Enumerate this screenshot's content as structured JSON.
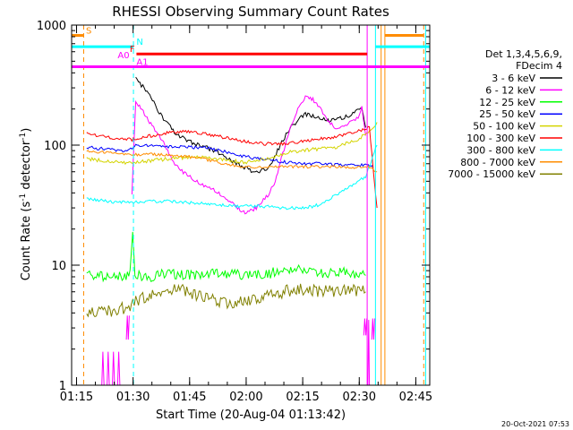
{
  "chart_data": {
    "type": "line",
    "title": "RHESSI Observing Summary Count Rates",
    "xlabel": "Start Time (20-Aug-04 01:13:42)",
    "ylabel": "Count Rate (s⁻¹ detector⁻¹)",
    "ylabel_main": "Count Rate (s",
    "ylabel_sup1": "-1",
    "ylabel_mid": " detector",
    "ylabel_sup2": "-1",
    "ylabel_end": ")",
    "y_scale": "log",
    "ylim": [
      1,
      1000
    ],
    "x_unit": "minutes after 01:13:42",
    "xlim": [
      0,
      95
    ],
    "x_ticks": [
      {
        "x": 1.3,
        "label": "01:15"
      },
      {
        "x": 16.3,
        "label": "01:30"
      },
      {
        "x": 31.3,
        "label": "01:45"
      },
      {
        "x": 46.3,
        "label": "02:00"
      },
      {
        "x": 61.3,
        "label": "02:15"
      },
      {
        "x": 76.3,
        "label": "02:30"
      },
      {
        "x": 91.3,
        "label": "02:45"
      }
    ],
    "y_ticks": [
      {
        "y": 1,
        "label": "1"
      },
      {
        "y": 10,
        "label": "10"
      },
      {
        "y": 100,
        "label": "100"
      },
      {
        "y": 1000,
        "label": "1000"
      }
    ],
    "legend_header": [
      "Det 1,3,4,5,6,9,",
      "FDecim 4"
    ],
    "legend_position": "right",
    "series": [
      {
        "name": "3 - 6 keV",
        "color": "#000000",
        "points": [
          [
            17,
            360
          ],
          [
            20,
            280
          ],
          [
            24,
            170
          ],
          [
            28,
            120
          ],
          [
            32,
            105
          ],
          [
            38,
            90
          ],
          [
            44,
            70
          ],
          [
            48,
            60
          ],
          [
            52,
            62
          ],
          [
            55,
            95
          ],
          [
            58,
            140
          ],
          [
            60,
            160
          ],
          [
            62,
            180
          ],
          [
            64,
            175
          ],
          [
            68,
            160
          ],
          [
            72,
            170
          ],
          [
            75,
            185
          ],
          [
            77,
            200
          ],
          [
            78,
            140
          ]
        ]
      },
      {
        "name": "6 - 12 keV",
        "color": "#ff00ff",
        "points": [
          [
            16,
            40
          ],
          [
            17,
            230
          ],
          [
            19,
            190
          ],
          [
            21,
            150
          ],
          [
            24,
            110
          ],
          [
            27,
            72
          ],
          [
            30,
            58
          ],
          [
            34,
            48
          ],
          [
            38,
            42
          ],
          [
            42,
            34
          ],
          [
            44,
            30
          ],
          [
            46,
            27
          ],
          [
            49,
            30
          ],
          [
            52,
            38
          ],
          [
            54,
            50
          ],
          [
            56,
            85
          ],
          [
            58,
            140
          ],
          [
            60,
            200
          ],
          [
            62,
            250
          ],
          [
            64,
            240
          ],
          [
            66,
            200
          ],
          [
            68,
            160
          ],
          [
            70,
            140
          ],
          [
            73,
            150
          ],
          [
            76,
            170
          ],
          [
            77,
            205
          ],
          [
            78,
            120
          ]
        ]
      },
      {
        "name": "12 - 25 keV",
        "color": "#00ff00",
        "points": [
          [
            4,
            8.5
          ],
          [
            8,
            8.2
          ],
          [
            12,
            8
          ],
          [
            15.5,
            8.3
          ],
          [
            16.2,
            20
          ],
          [
            16.8,
            8.5
          ],
          [
            20,
            7.8
          ],
          [
            26,
            8.6
          ],
          [
            32,
            8.2
          ],
          [
            40,
            8.5
          ],
          [
            48,
            8.3
          ],
          [
            56,
            8.8
          ],
          [
            62,
            9.2
          ],
          [
            68,
            8.5
          ],
          [
            74,
            8.7
          ],
          [
            78,
            8.2
          ]
        ]
      },
      {
        "name": "25 - 50 keV",
        "color": "#0000ff",
        "points": [
          [
            4,
            96
          ],
          [
            10,
            92
          ],
          [
            15,
            90
          ],
          [
            17,
            100
          ],
          [
            22,
            98
          ],
          [
            30,
            96
          ],
          [
            36,
            95
          ],
          [
            42,
            86
          ],
          [
            48,
            78
          ],
          [
            54,
            74
          ],
          [
            60,
            70
          ],
          [
            66,
            70
          ],
          [
            72,
            68
          ],
          [
            78,
            68
          ],
          [
            80,
            65
          ]
        ]
      },
      {
        "name": "50 - 100 keV",
        "color": "#d4d400",
        "points": [
          [
            4,
            77
          ],
          [
            10,
            73
          ],
          [
            16,
            71
          ],
          [
            22,
            75
          ],
          [
            28,
            78
          ],
          [
            34,
            80
          ],
          [
            40,
            76
          ],
          [
            46,
            72
          ],
          [
            52,
            77
          ],
          [
            58,
            88
          ],
          [
            64,
            92
          ],
          [
            70,
            96
          ],
          [
            76,
            112
          ],
          [
            79,
            128
          ],
          [
            81,
            155
          ]
        ]
      },
      {
        "name": "100 - 300 keV",
        "color": "#ff0000",
        "points": [
          [
            4,
            125
          ],
          [
            8,
            118
          ],
          [
            12,
            113
          ],
          [
            16,
            111
          ],
          [
            20,
            118
          ],
          [
            26,
            128
          ],
          [
            32,
            130
          ],
          [
            38,
            120
          ],
          [
            44,
            110
          ],
          [
            50,
            103
          ],
          [
            56,
            102
          ],
          [
            62,
            108
          ],
          [
            68,
            115
          ],
          [
            74,
            125
          ],
          [
            79,
            140
          ],
          [
            81,
            30
          ]
        ]
      },
      {
        "name": "300 - 800 keV",
        "color": "#00ffff",
        "points": [
          [
            4,
            36
          ],
          [
            10,
            34
          ],
          [
            16,
            33
          ],
          [
            20,
            34
          ],
          [
            26,
            34
          ],
          [
            32,
            33
          ],
          [
            38,
            32
          ],
          [
            44,
            31
          ],
          [
            50,
            31
          ],
          [
            56,
            30
          ],
          [
            62,
            30
          ],
          [
            66,
            32
          ],
          [
            70,
            38
          ],
          [
            74,
            45
          ],
          [
            78,
            55
          ],
          [
            81,
            100
          ]
        ]
      },
      {
        "name": "800 - 7000 keV",
        "color": "#ff8c00",
        "points": [
          [
            4,
            90
          ],
          [
            10,
            86
          ],
          [
            16,
            83
          ],
          [
            22,
            84
          ],
          [
            28,
            82
          ],
          [
            34,
            78
          ],
          [
            40,
            70
          ],
          [
            46,
            66
          ],
          [
            52,
            66
          ],
          [
            58,
            66
          ],
          [
            64,
            66
          ],
          [
            70,
            66
          ],
          [
            76,
            65
          ],
          [
            79,
            66
          ],
          [
            81,
            60
          ]
        ]
      },
      {
        "name": "7000 - 15000 keV",
        "color": "#808000",
        "points": [
          [
            4,
            4.2
          ],
          [
            8,
            4
          ],
          [
            12,
            4.3
          ],
          [
            15.5,
            4.4
          ],
          [
            17,
            5
          ],
          [
            20,
            5.5
          ],
          [
            24,
            6
          ],
          [
            28,
            6.3
          ],
          [
            32,
            5.8
          ],
          [
            36,
            5.2
          ],
          [
            42,
            4.8
          ],
          [
            48,
            5
          ],
          [
            54,
            5.8
          ],
          [
            60,
            6.4
          ],
          [
            66,
            6
          ],
          [
            72,
            6.2
          ],
          [
            78,
            6
          ]
        ]
      }
    ],
    "low_magenta": {
      "color": "#ff00ff",
      "segments": [
        [
          [
            8,
            1
          ],
          [
            8.6,
            1.9
          ]
        ],
        [
          [
            9.4,
            1
          ],
          [
            10,
            1.9
          ]
        ],
        [
          [
            10.8,
            1
          ],
          [
            11.4,
            1.9
          ]
        ],
        [
          [
            12.2,
            1
          ],
          [
            12.8,
            1.9
          ]
        ],
        [
          [
            14.5,
            2.4
          ],
          [
            15.3,
            3.8
          ]
        ],
        [
          [
            77.5,
            2.6
          ],
          [
            78.3,
            3.6
          ]
        ],
        [
          [
            78.6,
            1
          ],
          [
            79,
            3.5
          ]
        ],
        [
          [
            79.6,
            2.4
          ],
          [
            80.4,
            3.6
          ]
        ]
      ]
    },
    "vertical_lines": [
      {
        "x": 3.2,
        "color": "#ff8c00",
        "style": "dashed"
      },
      {
        "x": 16.4,
        "color": "#00ffff",
        "style": "dashed"
      },
      {
        "x": 78.4,
        "color": "#ff00ff",
        "style": "solid"
      },
      {
        "x": 80.6,
        "color": "#00ffff",
        "style": "solid"
      },
      {
        "x": 82.1,
        "color": "#ff8c00",
        "style": "solid"
      },
      {
        "x": 83.1,
        "color": "#ff8c00",
        "style": "solid"
      },
      {
        "x": 93.4,
        "color": "#ff8c00",
        "style": "dashed"
      },
      {
        "x": 93.9,
        "color": "#00ffff",
        "style": "solid"
      }
    ],
    "state_bars": [
      {
        "label": "S",
        "color": "#ff8c00",
        "y": 820,
        "segments": [
          [
            0,
            3.2
          ],
          [
            83.1,
            93.4
          ]
        ],
        "label_x": 3.8
      },
      {
        "label": "N",
        "color": "#00ffff",
        "y": 660,
        "segments": [
          [
            0,
            16.4
          ],
          [
            80.6,
            95
          ]
        ],
        "label_x": 17.2
      },
      {
        "label": "F",
        "color": "#ff0000",
        "y": 575,
        "segments": [
          [
            17.2,
            78.4
          ]
        ],
        "label_x": 15.4
      },
      {
        "label": "A0",
        "color": "#ff00ff",
        "y": 510,
        "segments": [],
        "label_x": 12.2
      },
      {
        "label": "A1",
        "color": "#ff00ff",
        "y": 450,
        "segments": [
          [
            0,
            16.4
          ],
          [
            16.4,
            95
          ]
        ],
        "label_x": 17.2
      }
    ],
    "timestamp": "20-Oct-2021 07:53"
  }
}
